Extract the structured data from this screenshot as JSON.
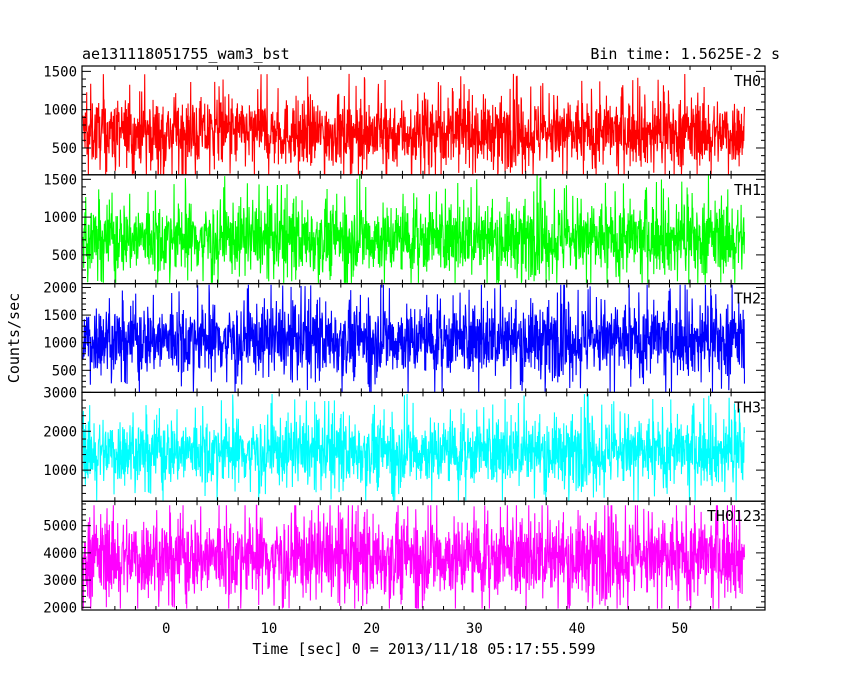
{
  "chart_data": {
    "type": "line",
    "title_left": "ae131118051755_wam3_bst",
    "title_right": "Bin time: 1.5625E-2 s",
    "xlabel": "Time [sec] 0 = 2013/11/18 05:17:55.599",
    "ylabel": "Counts/sec",
    "xlim": [
      -8.2,
      58.3
    ],
    "x_ticks": [
      0,
      10,
      20,
      30,
      40,
      50
    ],
    "x_tick_labels": [
      "0",
      "10",
      "20",
      "30",
      "40",
      "50"
    ],
    "data_x_range": [
      -8.1,
      56.3
    ],
    "bin_time": 0.015625,
    "panels": [
      {
        "name": "TH0",
        "color": "#ff0000",
        "ylim": [
          150,
          1570
        ],
        "ticks": [
          500,
          1000,
          1500
        ],
        "tick_labels": [
          "500",
          "1000",
          "1500"
        ],
        "mean": 700,
        "half_spread": 350,
        "max": 1560,
        "min": 150
      },
      {
        "name": "TH1",
        "color": "#00ff00",
        "ylim": [
          120,
          1560
        ],
        "ticks": [
          500,
          1000,
          1500
        ],
        "tick_labels": [
          "500",
          "1000",
          "1500"
        ],
        "mean": 720,
        "half_spread": 380,
        "max": 1560,
        "min": 130
      },
      {
        "name": "TH2",
        "color": "#0000ff",
        "ylim": [
          100,
          2070
        ],
        "ticks": [
          500,
          1000,
          1500,
          2000
        ],
        "tick_labels": [
          "500",
          "1000",
          "1500",
          "2000"
        ],
        "mean": 1060,
        "half_spread": 520,
        "max": 2050,
        "min": 100
      },
      {
        "name": "TH3",
        "color": "#00ffff",
        "ylim": [
          200,
          3000
        ],
        "ticks": [
          1000,
          2000,
          3000
        ],
        "tick_labels": [
          "1000",
          "2000",
          "3000"
        ],
        "mean": 1480,
        "half_spread": 700,
        "max": 2960,
        "min": 220
      },
      {
        "name": "TH0123",
        "color": "#ff00ff",
        "ylim": [
          1900,
          5900
        ],
        "ticks": [
          2000,
          3000,
          4000,
          5000
        ],
        "tick_labels": [
          "2000",
          "3000",
          "4000",
          "5000"
        ],
        "mean": 3850,
        "half_spread": 1200,
        "max": 5750,
        "min": 1950
      }
    ]
  }
}
